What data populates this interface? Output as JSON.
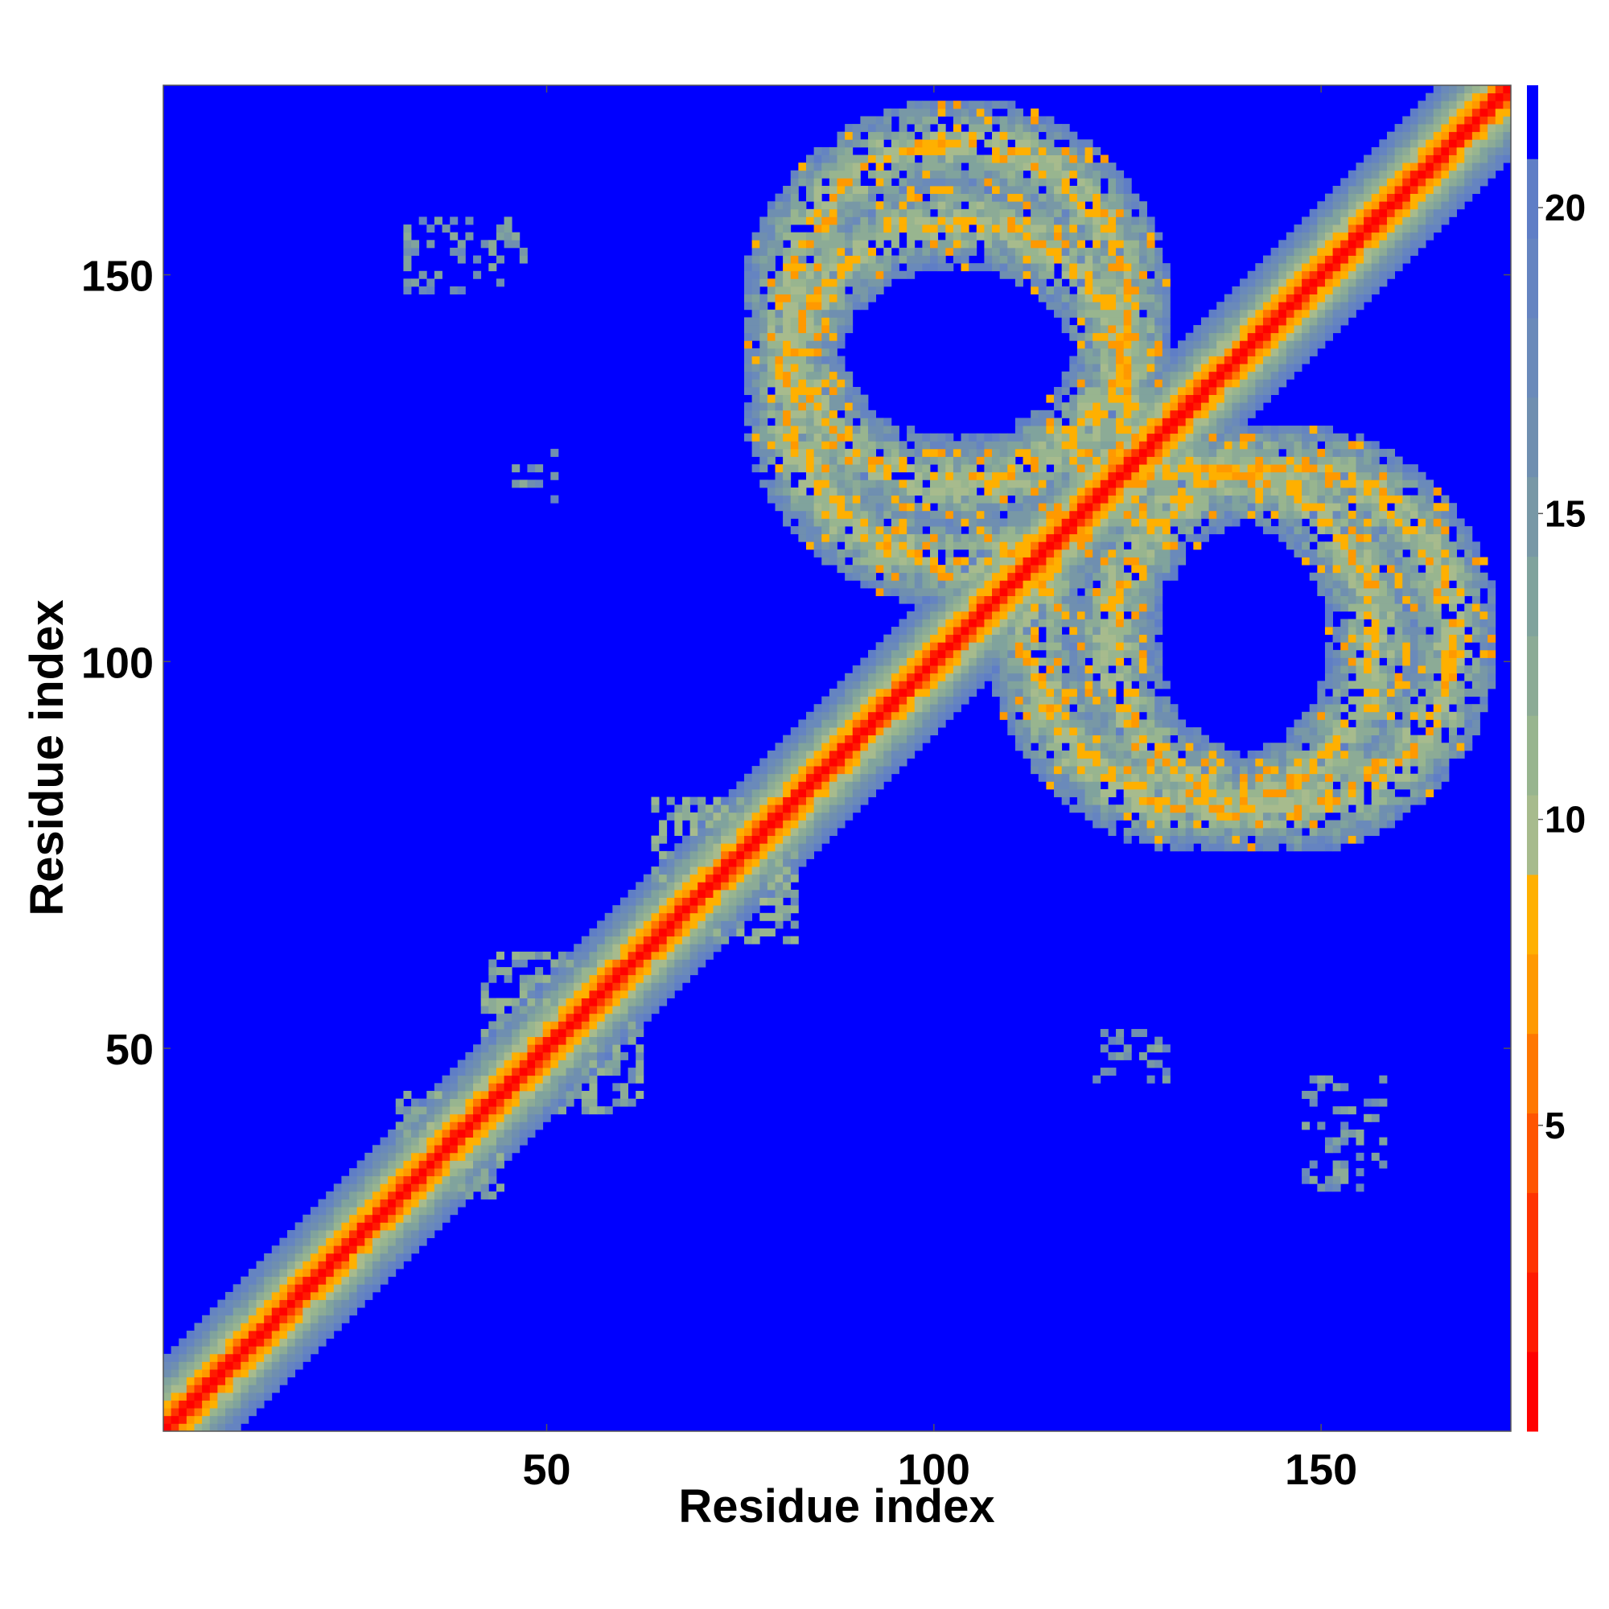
{
  "chart_data": {
    "type": "heatmap",
    "title": "",
    "xlabel": "Residue index",
    "ylabel": "Residue index",
    "n_residues": 174,
    "xlim": [
      0.5,
      174.5
    ],
    "ylim": [
      0.5,
      174.5
    ],
    "x_ticks": [
      50,
      100,
      150
    ],
    "y_ticks": [
      50,
      100,
      150
    ],
    "x_tick_labels": [
      "50",
      "100",
      "150"
    ],
    "y_tick_labels": [
      "50",
      "100",
      "150"
    ],
    "colorbar": {
      "range": [
        0,
        22
      ],
      "ticks": [
        5,
        10,
        15,
        20
      ],
      "tick_labels": [
        "5",
        "10",
        "15",
        "20"
      ],
      "levels": [
        {
          "upto": 1.3,
          "color": "#ff0000"
        },
        {
          "upto": 2.6,
          "color": "#ff1a00"
        },
        {
          "upto": 3.9,
          "color": "#ff3300"
        },
        {
          "upto": 5.2,
          "color": "#ff5500"
        },
        {
          "upto": 6.5,
          "color": "#ff7700"
        },
        {
          "upto": 7.8,
          "color": "#ff9900"
        },
        {
          "upto": 9.1,
          "color": "#ffb000"
        },
        {
          "upto": 10.4,
          "color": "#a7bb8d"
        },
        {
          "upto": 11.7,
          "color": "#98b58f"
        },
        {
          "upto": 13.0,
          "color": "#8cab96"
        },
        {
          "upto": 14.3,
          "color": "#80a39d"
        },
        {
          "upto": 15.6,
          "color": "#7898a6"
        },
        {
          "upto": 16.9,
          "color": "#6f8fb0"
        },
        {
          "upto": 18.2,
          "color": "#6a8aba"
        },
        {
          "upto": 19.5,
          "color": "#6584c1"
        },
        {
          "upto": 20.8,
          "color": "#5f7ec6"
        },
        {
          "upto": 22.0,
          "color": "#0000ff"
        }
      ]
    },
    "background_value": 22,
    "background_color": "#0000ff",
    "value_meaning": "pairwise residue distance (lower = closer)",
    "features": {
      "diagonal": {
        "core_value": 3,
        "mid_value": 6,
        "falloff_per_residue": 1.9
      },
      "rings": [
        {
          "center_x": 103,
          "center_y": 135,
          "radius_x": 22,
          "radius_y": 22,
          "width": 6
        },
        {
          "center_x": 145,
          "center_y": 103,
          "radius_x": 22,
          "radius_y": 22,
          "width": 6
        }
      ],
      "segment_contacts": [
        {
          "x": [
            48,
            62
          ],
          "y": [
            42,
            56
          ]
        },
        {
          "x": [
            33,
            44
          ],
          "y": [
            31,
            42
          ]
        },
        {
          "x": [
            72,
            82
          ],
          "y": [
            64,
            76
          ]
        }
      ],
      "sparse_patches": [
        {
          "x": [
            32,
            47
          ],
          "y": [
            148,
            157
          ]
        },
        {
          "x": [
            46,
            51
          ],
          "y": [
            121,
            127
          ]
        },
        {
          "x": [
            121,
            131
          ],
          "y": [
            46,
            52
          ]
        },
        {
          "x": [
            148,
            158
          ],
          "y": [
            32,
            46
          ]
        }
      ]
    }
  }
}
